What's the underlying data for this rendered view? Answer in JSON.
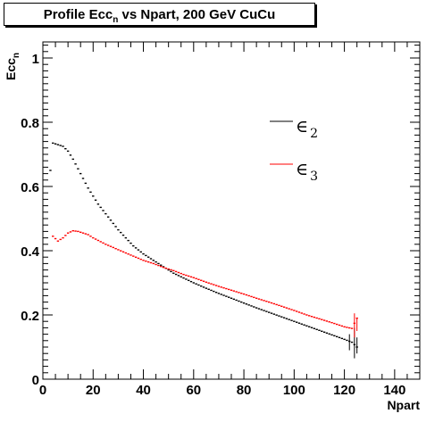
{
  "chart_data": {
    "type": "scatter",
    "title": "Profile Ecc",
    "title_sub": "n",
    "title_rest": " vs Npart, 200 GeV CuCu",
    "xlabel": "Npart",
    "ylabel": "Ecc",
    "ylabel_sub": "n",
    "xlim": [
      0,
      150
    ],
    "ylim": [
      0,
      1.05
    ],
    "x_ticks": [
      0,
      20,
      40,
      60,
      80,
      100,
      120,
      140
    ],
    "y_ticks": [
      0,
      0.2,
      0.4,
      0.6,
      0.8,
      1
    ],
    "x_tick_labels": [
      "0",
      "20",
      "40",
      "60",
      "80",
      "100",
      "120",
      "140"
    ],
    "y_tick_labels": [
      "0",
      "0.2",
      "0.4",
      "0.6",
      "0.8",
      "1"
    ],
    "legend_position": "right",
    "series": [
      {
        "name": "∈",
        "name_sub": "2",
        "color": "#000000",
        "points": [
          [
            3,
            0.65
          ],
          [
            4,
            0.735
          ],
          [
            6,
            0.73
          ],
          [
            8,
            0.725
          ],
          [
            10,
            0.71
          ],
          [
            12,
            0.685
          ],
          [
            14,
            0.655
          ],
          [
            16,
            0.625
          ],
          [
            18,
            0.595
          ],
          [
            20,
            0.57
          ],
          [
            22,
            0.545
          ],
          [
            25,
            0.515
          ],
          [
            28,
            0.485
          ],
          [
            30,
            0.465
          ],
          [
            33,
            0.44
          ],
          [
            36,
            0.415
          ],
          [
            40,
            0.39
          ],
          [
            44,
            0.37
          ],
          [
            48,
            0.35
          ],
          [
            52,
            0.33
          ],
          [
            56,
            0.315
          ],
          [
            60,
            0.3
          ],
          [
            65,
            0.283
          ],
          [
            70,
            0.267
          ],
          [
            75,
            0.252
          ],
          [
            80,
            0.237
          ],
          [
            85,
            0.222
          ],
          [
            90,
            0.208
          ],
          [
            95,
            0.194
          ],
          [
            100,
            0.18
          ],
          [
            105,
            0.166
          ],
          [
            110,
            0.152
          ],
          [
            115,
            0.138
          ],
          [
            120,
            0.124
          ],
          [
            123,
            0.115
          ],
          [
            125,
            0.1
          ]
        ]
      },
      {
        "name": "∈",
        "name_sub": "3",
        "color": "#ff0000",
        "points": [
          [
            4,
            0.445
          ],
          [
            6,
            0.43
          ],
          [
            8,
            0.44
          ],
          [
            10,
            0.455
          ],
          [
            12,
            0.462
          ],
          [
            14,
            0.46
          ],
          [
            16,
            0.455
          ],
          [
            18,
            0.45
          ],
          [
            20,
            0.44
          ],
          [
            22,
            0.432
          ],
          [
            25,
            0.42
          ],
          [
            28,
            0.41
          ],
          [
            30,
            0.403
          ],
          [
            33,
            0.393
          ],
          [
            36,
            0.383
          ],
          [
            40,
            0.37
          ],
          [
            44,
            0.36
          ],
          [
            48,
            0.348
          ],
          [
            52,
            0.338
          ],
          [
            56,
            0.326
          ],
          [
            60,
            0.316
          ],
          [
            65,
            0.302
          ],
          [
            70,
            0.289
          ],
          [
            75,
            0.277
          ],
          [
            80,
            0.265
          ],
          [
            85,
            0.252
          ],
          [
            90,
            0.24
          ],
          [
            95,
            0.227
          ],
          [
            100,
            0.214
          ],
          [
            105,
            0.2
          ],
          [
            110,
            0.188
          ],
          [
            115,
            0.176
          ],
          [
            120,
            0.163
          ],
          [
            123,
            0.158
          ],
          [
            125,
            0.19
          ]
        ]
      }
    ]
  }
}
